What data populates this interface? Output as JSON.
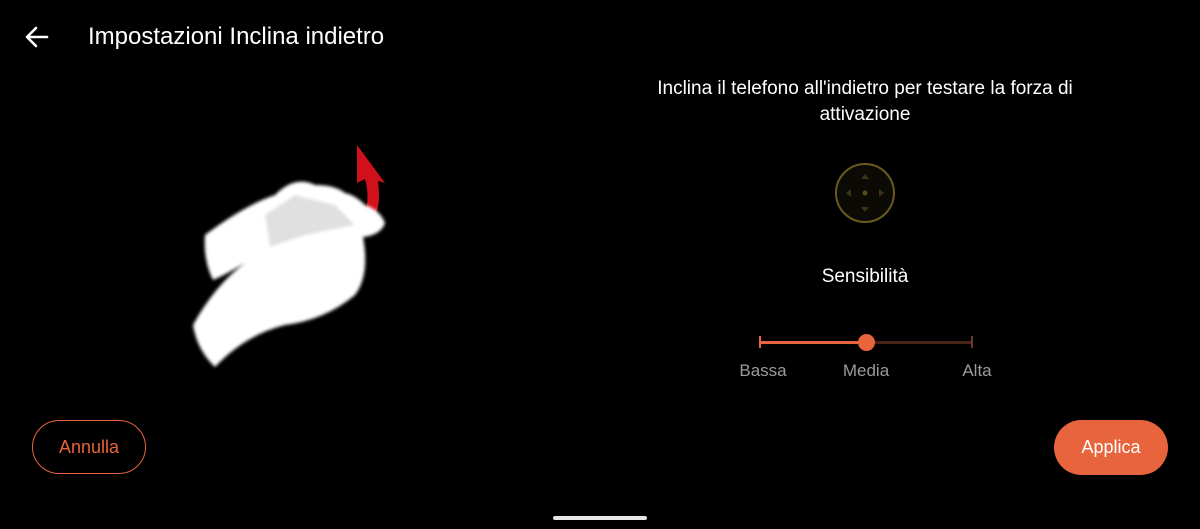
{
  "header": {
    "title": "Impostazioni Inclina indietro",
    "back_icon": "arrow-left-icon"
  },
  "instruction": "Inclina il telefono all'indietro per testare la forza di attivazione",
  "sensitivity": {
    "label": "Sensibilità",
    "options": [
      "Bassa",
      "Media",
      "Alta"
    ],
    "selected": "Media",
    "value_fraction": 0.5
  },
  "buttons": {
    "cancel": "Annulla",
    "apply": "Applica"
  },
  "colors": {
    "accent": "#e8643c",
    "background": "#000000",
    "joystick": "#6b5a1e",
    "arrow": "#d0101a"
  }
}
